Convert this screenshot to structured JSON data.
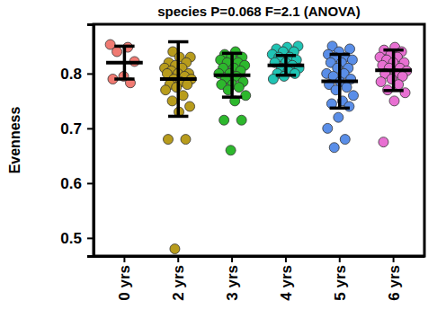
{
  "chart_data": {
    "type": "strip",
    "title": "species P=0.068 F=2.1 (ANOVA)",
    "y_label": "Evenness",
    "categories": [
      "0 yrs",
      "2 yrs",
      "3 yrs",
      "4 yrs",
      "5 yrs",
      "6 yrs"
    ],
    "colors": [
      "#f07a72",
      "#b89c1c",
      "#2db82d",
      "#1fc4b4",
      "#5a8ee8",
      "#e870d2"
    ],
    "points": [
      [
        0.853,
        0.848,
        0.84,
        0.822,
        0.795,
        0.79,
        0.783
      ],
      [
        0.84,
        0.83,
        0.83,
        0.82,
        0.82,
        0.815,
        0.81,
        0.81,
        0.805,
        0.8,
        0.8,
        0.8,
        0.795,
        0.79,
        0.79,
        0.785,
        0.78,
        0.78,
        0.775,
        0.77,
        0.76,
        0.75,
        0.74,
        0.73,
        0.68,
        0.68,
        0.48
      ],
      [
        0.84,
        0.835,
        0.83,
        0.83,
        0.825,
        0.82,
        0.82,
        0.815,
        0.81,
        0.81,
        0.805,
        0.8,
        0.8,
        0.795,
        0.79,
        0.785,
        0.78,
        0.78,
        0.775,
        0.77,
        0.76,
        0.75,
        0.715,
        0.715,
        0.66
      ],
      [
        0.85,
        0.848,
        0.845,
        0.84,
        0.84,
        0.835,
        0.83,
        0.83,
        0.825,
        0.82,
        0.82,
        0.815,
        0.81,
        0.81,
        0.805,
        0.8,
        0.8,
        0.795,
        0.79
      ],
      [
        0.85,
        0.845,
        0.84,
        0.835,
        0.83,
        0.83,
        0.825,
        0.82,
        0.82,
        0.81,
        0.81,
        0.8,
        0.8,
        0.795,
        0.79,
        0.785,
        0.78,
        0.775,
        0.77,
        0.76,
        0.75,
        0.745,
        0.74,
        0.72,
        0.7,
        0.68,
        0.665
      ],
      [
        0.848,
        0.843,
        0.84,
        0.835,
        0.83,
        0.83,
        0.825,
        0.82,
        0.82,
        0.815,
        0.81,
        0.81,
        0.805,
        0.8,
        0.8,
        0.795,
        0.79,
        0.785,
        0.78,
        0.77,
        0.765,
        0.75,
        0.675
      ]
    ],
    "means": [
      0.82,
      0.79,
      0.797,
      0.815,
      0.786,
      0.806
    ],
    "errors": [
      0.03,
      0.068,
      0.04,
      0.018,
      0.049,
      0.037
    ],
    "ylim": [
      0.467,
      0.89
    ],
    "yticks": [
      0.5,
      0.6,
      0.7,
      0.8
    ]
  }
}
